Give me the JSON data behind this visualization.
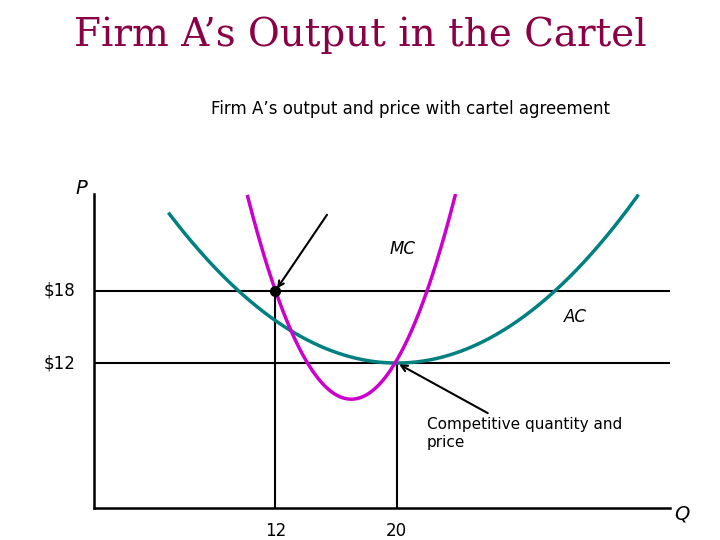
{
  "title": "Firm A’s Output in the Cartel",
  "subtitle": "Firm A’s output and price with cartel agreement",
  "title_color": "#8B0045",
  "subtitle_color": "#000000",
  "title_fontsize": 28,
  "subtitle_fontsize": 12,
  "background_color": "#FFFFFF",
  "xlabel": "Q",
  "ylabel": "P",
  "price_cartel": 18,
  "price_competitive": 12,
  "q_cartel": 12,
  "q_competitive": 20,
  "ac_color": "#008080",
  "mc_color": "#CC00CC",
  "line_color": "#000000",
  "dot_color": "#000000",
  "xmin": 0,
  "xmax": 38,
  "ymin": 0,
  "ymax": 26
}
